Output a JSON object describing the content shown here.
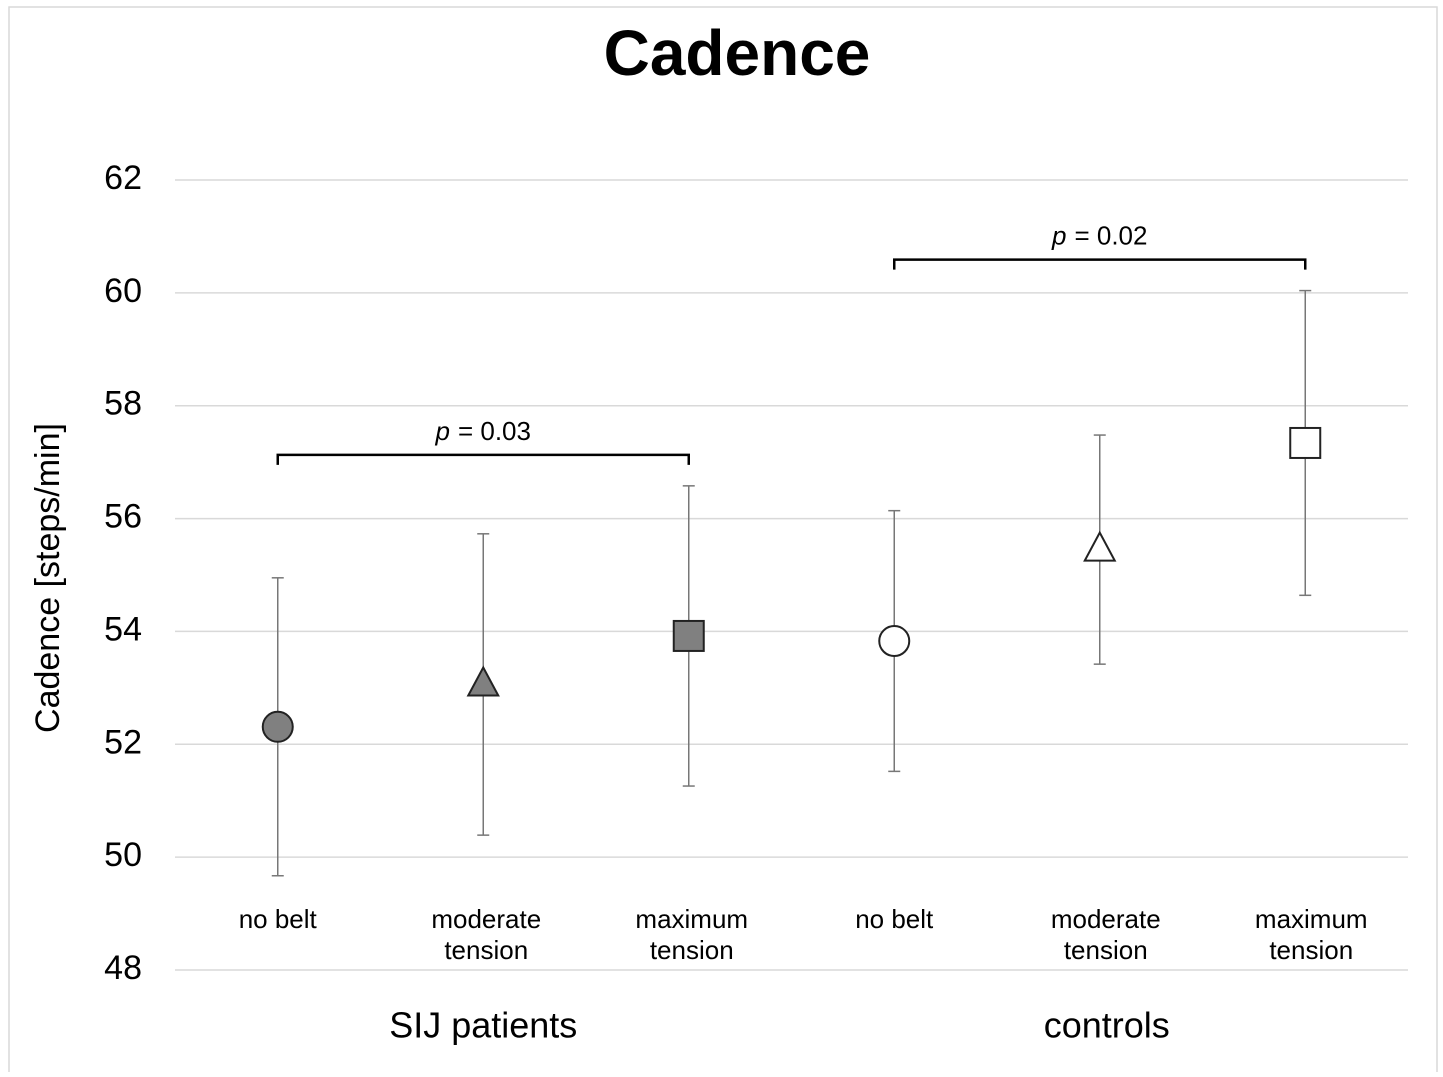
{
  "chart_data": {
    "type": "errorbar",
    "title": "Cadence",
    "y_label": "Cadence [steps/min]",
    "ylim": [
      48,
      62
    ],
    "yticks": [
      48,
      50,
      52,
      54,
      56,
      58,
      60,
      62
    ],
    "grid": true,
    "categories": [
      [
        "no belt"
      ],
      [
        "moderate",
        "tension"
      ],
      [
        "maximum",
        "tension"
      ]
    ],
    "series": [
      {
        "name": "SIJ patients",
        "color": "#808080",
        "values": [
          52.31,
          53.06,
          53.92
        ],
        "errors": [
          2.64,
          2.67,
          2.66
        ],
        "annotation": {
          "italic": "p",
          "text": "= 0.03"
        }
      },
      {
        "name": "controls",
        "color": "#ffffff",
        "values": [
          53.83,
          55.45,
          57.34
        ],
        "errors": [
          2.31,
          2.03,
          2.7
        ],
        "annotation": {
          "italic": "p",
          "text": "= 0.02"
        }
      }
    ]
  }
}
